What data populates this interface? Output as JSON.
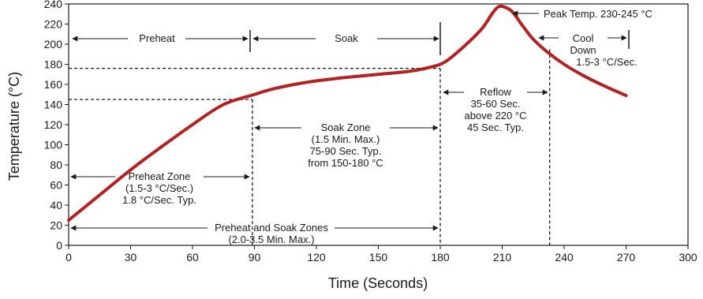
{
  "chart_data": {
    "type": "line",
    "xlabel": "Time (Seconds)",
    "ylabel": "Temperature (°C)",
    "xlim": [
      0,
      300
    ],
    "ylim": [
      0,
      240
    ],
    "x_ticks": [
      0,
      30,
      60,
      90,
      120,
      150,
      180,
      210,
      240,
      270,
      300
    ],
    "y_ticks": [
      0,
      20,
      40,
      60,
      80,
      100,
      120,
      140,
      160,
      180,
      200,
      220,
      240
    ],
    "grid": false,
    "line_color": "#b22222",
    "series": [
      {
        "x": [
          0,
          15,
          30,
          45,
          60,
          75,
          90,
          100,
          115,
          130,
          150,
          165,
          175,
          182,
          190,
          200,
          205,
          208,
          211,
          215,
          220,
          225,
          232,
          240,
          250,
          260,
          270
        ],
        "y": [
          25,
          50,
          75,
          98,
          120,
          140,
          150,
          156,
          162,
          166,
          170,
          173,
          177,
          182,
          195,
          215,
          230,
          237,
          237,
          232,
          218,
          205,
          192,
          180,
          168,
          158,
          149
        ]
      }
    ],
    "reference_lines": {
      "h_176": {
        "y": 176,
        "x_to": 180
      },
      "h_145": {
        "y": 145,
        "x_to": 89
      },
      "v_89": {
        "x": 89,
        "y_to": 145
      },
      "v_180": {
        "x": 180,
        "y_to": 176
      },
      "v_233": {
        "x": 233,
        "y_to": 195
      }
    },
    "annotations": {
      "preheat": "Preheat",
      "soak": "Soak",
      "cool_down": [
        "Cool",
        "Down",
        "1.5-3 °C/Sec."
      ],
      "peak": "Peak Temp. 230-245 °C",
      "reflow": [
        "Reflow",
        "35-60 Sec.",
        "above 220 °C",
        "45 Sec. Typ."
      ],
      "soak_zone": [
        "Soak Zone",
        "(1.5 Min. Max.)",
        "75-90 Sec. Typ.",
        "from 150-180 °C"
      ],
      "preheat_zone": [
        "Preheat Zone",
        "(1.5-3 °C/Sec.)",
        "1.8 °C/Sec. Typ."
      ],
      "preheat_soak_zones": [
        "Preheat and Soak Zones",
        "(2.0-3.5 Min. Max.)"
      ]
    }
  }
}
